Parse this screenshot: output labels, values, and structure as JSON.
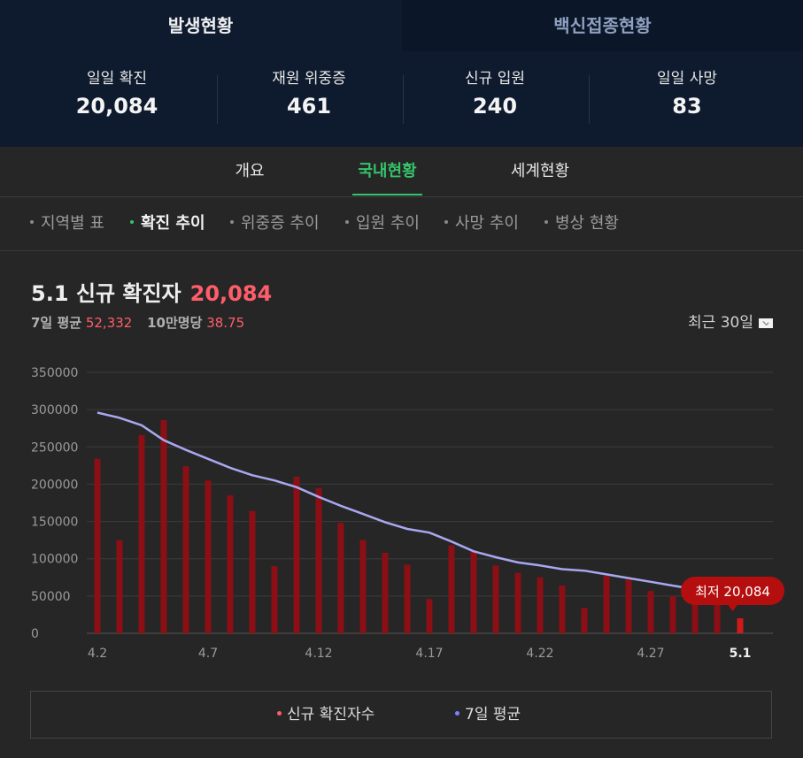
{
  "top_tabs": [
    "발생현황",
    "백신접종현황"
  ],
  "stats": [
    {
      "label": "일일 확진",
      "value": "20,084"
    },
    {
      "label": "재원 위중증",
      "value": "461"
    },
    {
      "label": "신규 입원",
      "value": "240"
    },
    {
      "label": "일일 사망",
      "value": "83"
    }
  ],
  "nav": [
    "개요",
    "국내현황",
    "세계현황"
  ],
  "subnav": [
    "지역별 표",
    "확진 추이",
    "위중증 추이",
    "입원 추이",
    "사망 추이",
    "병상 현황"
  ],
  "heading": {
    "title": "5.1 신규 확진자",
    "value": "20,084"
  },
  "avg": {
    "label7": "7일 평균",
    "value7": "52,332",
    "label100k": "10만명당",
    "value100k": "38.75"
  },
  "period": "최근 30일",
  "tooltip": "최저 20,084",
  "legend": [
    "신규 확진자수",
    "7일 평균"
  ],
  "colors": {
    "bar": "#8b0f14",
    "bar_highlight": "#d01a1a",
    "avg_line": "#a8a8f0",
    "accent_green": "#35c36a",
    "accent_red": "#ff5d6a"
  },
  "chart_data": {
    "type": "bar",
    "categories": [
      "4.2",
      "4.3",
      "4.4",
      "4.5",
      "4.6",
      "4.7",
      "4.8",
      "4.9",
      "4.10",
      "4.11",
      "4.12",
      "4.13",
      "4.14",
      "4.15",
      "4.16",
      "4.17",
      "4.18",
      "4.19",
      "4.20",
      "4.21",
      "4.22",
      "4.23",
      "4.24",
      "4.25",
      "4.26",
      "4.27",
      "4.28",
      "4.29",
      "4.30",
      "5.1"
    ],
    "tick_labels": [
      "4.2",
      "4.7",
      "4.12",
      "4.17",
      "4.22",
      "4.27",
      "5.1"
    ],
    "yticks": [
      0,
      50000,
      100000,
      150000,
      200000,
      250000,
      300000,
      350000
    ],
    "ylim": [
      0,
      350000
    ],
    "series": [
      {
        "name": "신규 확진자수",
        "type": "bar",
        "values": [
          234000,
          125000,
          266000,
          286000,
          224000,
          205000,
          185000,
          164000,
          90000,
          210000,
          195000,
          148000,
          125000,
          108000,
          92000,
          46000,
          118000,
          111000,
          91000,
          81000,
          75000,
          64000,
          34000,
          77000,
          72000,
          57000,
          50000,
          43000,
          38000,
          20084
        ]
      },
      {
        "name": "7일 평균",
        "type": "line",
        "values": [
          296000,
          289000,
          279000,
          259000,
          246000,
          234000,
          222000,
          212000,
          205000,
          196000,
          183000,
          171000,
          160000,
          149000,
          140000,
          135000,
          123000,
          110000,
          102000,
          95000,
          91000,
          86000,
          84000,
          79000,
          74000,
          69000,
          64000,
          59000,
          56000,
          52332
        ]
      }
    ],
    "highlight_label": "최저 20,084",
    "grid": true
  }
}
